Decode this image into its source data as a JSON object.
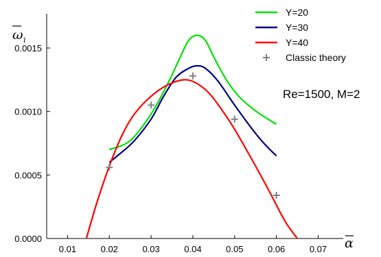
{
  "chart_data": {
    "type": "line",
    "x_axis_symbol": "α",
    "y_axis_symbol": "ω",
    "y_axis_subscript": "i",
    "xlim": [
      0.005,
      0.076
    ],
    "ylim": [
      0,
      0.00177
    ],
    "x_ticks": [
      0.01,
      0.02,
      0.03,
      0.04,
      0.05,
      0.06,
      0.07
    ],
    "x_tick_labels": [
      "0.01",
      "0.02",
      "0.03",
      "0.04",
      "0.05",
      "0.06",
      "0.07"
    ],
    "y_ticks": [
      0,
      0.0005,
      0.001,
      0.0015
    ],
    "y_tick_labels": [
      "0.0000",
      "0.0005",
      "0.0010",
      "0.0015"
    ],
    "annotation": "Re=1500, M=2",
    "legend_position": "top-right",
    "grid": false,
    "series": [
      {
        "name": "Y=20",
        "color": "#00e000",
        "x": [
          0.02,
          0.025,
          0.03,
          0.034,
          0.037,
          0.039,
          0.041,
          0.043,
          0.045,
          0.048,
          0.051,
          0.054,
          0.057,
          0.06
        ],
        "y": [
          0.0007,
          0.00077,
          0.00098,
          0.00122,
          0.00143,
          0.00156,
          0.0016,
          0.00156,
          0.00143,
          0.00125,
          0.00112,
          0.00103,
          0.00096,
          0.0009
        ]
      },
      {
        "name": "Y=30",
        "color": "#000080",
        "x": [
          0.02,
          0.023,
          0.026,
          0.03,
          0.033,
          0.036,
          0.039,
          0.041,
          0.043,
          0.046,
          0.05,
          0.054,
          0.057,
          0.06
        ],
        "y": [
          0.0006,
          0.00068,
          0.00077,
          0.00094,
          0.00112,
          0.00127,
          0.00134,
          0.00136,
          0.00134,
          0.00124,
          0.00105,
          0.00087,
          0.00075,
          0.00065
        ]
      },
      {
        "name": "Y=40",
        "color": "#ff0000",
        "x": [
          0.0145,
          0.017,
          0.02,
          0.023,
          0.026,
          0.03,
          0.034,
          0.038,
          0.041,
          0.044,
          0.047,
          0.05,
          0.054,
          0.058,
          0.062,
          0.065
        ],
        "y": [
          0.0,
          0.00028,
          0.00057,
          0.00081,
          0.00098,
          0.00112,
          0.00121,
          0.00125,
          0.00122,
          0.00114,
          0.00101,
          0.00086,
          0.00063,
          0.00039,
          0.00014,
          0.0
        ]
      },
      {
        "name": "Classic theory",
        "color": "#808080",
        "marker": "+",
        "x": [
          0.02,
          0.03,
          0.04,
          0.05,
          0.06
        ],
        "y": [
          0.00056,
          0.00105,
          0.00128,
          0.00094,
          0.00034
        ]
      }
    ]
  }
}
